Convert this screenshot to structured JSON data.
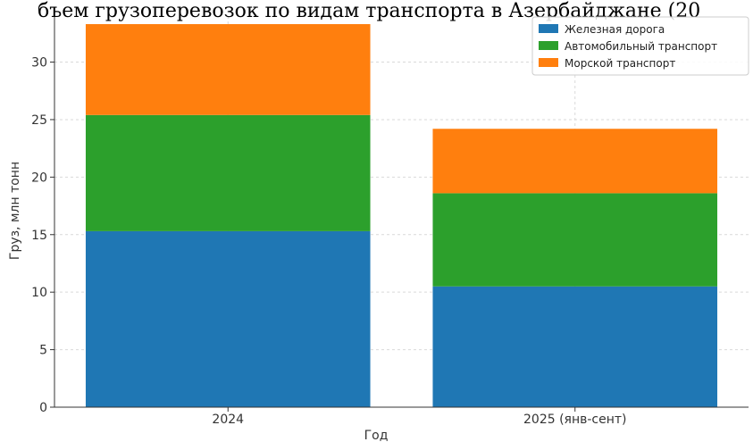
{
  "chart_data": {
    "type": "bar",
    "stacked": true,
    "title": "бъем грузоперевозок по видам транспорта в Азербайджане (20",
    "xlabel": "Год",
    "ylabel": "Груз, млн тонн",
    "categories": [
      "2024",
      "2025 (янв-сент)"
    ],
    "series": [
      {
        "name": "Железная дорога",
        "color": "#1f77b4",
        "values": [
          15.3,
          10.5
        ]
      },
      {
        "name": "Автомобильный транспорт",
        "color": "#2ca02c",
        "values": [
          10.1,
          8.1
        ]
      },
      {
        "name": "Морской транспорт",
        "color": "#ff7f0e",
        "values": [
          7.9,
          5.6
        ]
      }
    ],
    "ylim": [
      0,
      34
    ],
    "yticks": [
      0,
      5,
      10,
      15,
      20,
      25,
      30
    ],
    "grid": true,
    "legend_position": "top-right"
  }
}
